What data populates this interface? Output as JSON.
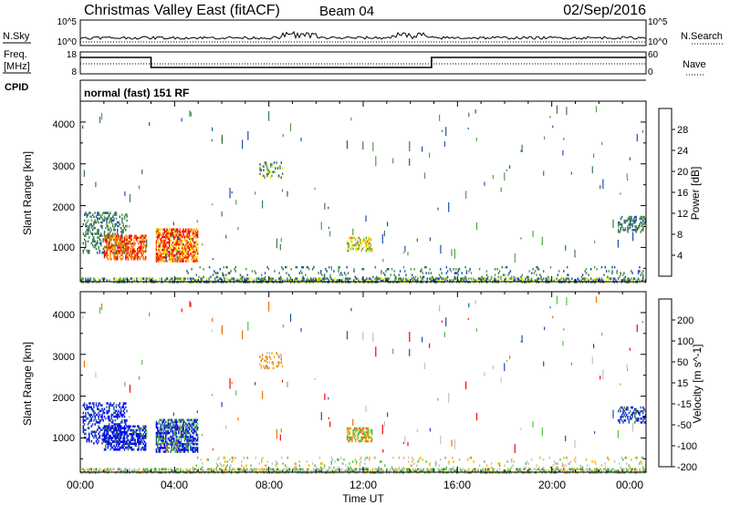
{
  "header": {
    "station": "Christmas Valley East (fitACF)",
    "beam": "Beam 04",
    "date": "02/Sep/2016"
  },
  "panels": {
    "nsky": {
      "left_label": "N.Sky",
      "left_ticks": [
        "10^5",
        "10^0"
      ],
      "right_ticks": [
        "10^5",
        "10^0"
      ],
      "right_label": "N.Search"
    },
    "freq": {
      "left_label_line1": "Freq.",
      "left_label_line2": "[MHz]",
      "left_ticks": [
        "18",
        "8"
      ],
      "right_ticks": [
        "60",
        "0"
      ],
      "right_label": "Nave"
    },
    "cpid": {
      "label": "CPID",
      "text": "normal (fast) 151 RF"
    }
  },
  "chart_data": {
    "type": "heatmap",
    "x": {
      "label": "Time UT",
      "ticks": [
        "00:00",
        "04:00",
        "08:00",
        "12:00",
        "16:00",
        "20:00",
        "00:00"
      ],
      "range_hours": [
        0,
        24
      ]
    },
    "y": {
      "label": "Slant Range [km]",
      "ticks": [
        "1000",
        "2000",
        "3000",
        "4000"
      ],
      "range_km": [
        180,
        4500
      ]
    },
    "power": {
      "colorbar_label": "Power [dB]",
      "colorbar_ticks": [
        "28",
        "24",
        "20",
        "16",
        "12",
        "8",
        "4"
      ],
      "colors": [
        "#0000ff",
        "#1f4fa8",
        "#3c7a4e",
        "#55a048",
        "#eaea00",
        "#f7a000",
        "#ee7000",
        "#ff0000"
      ]
    },
    "velocity": {
      "colorbar_label": "Velocity [m s^-1]",
      "colorbar_ticks": [
        "200",
        "100",
        "50",
        "15",
        "-15",
        "-50",
        "-100",
        "-200"
      ],
      "colors": [
        "#0000ff",
        "#1f4fa8",
        "#3c7a4e",
        "#55c048",
        "#c0c0c0",
        "#f7b000",
        "#ee7000",
        "#ff0000"
      ]
    }
  }
}
